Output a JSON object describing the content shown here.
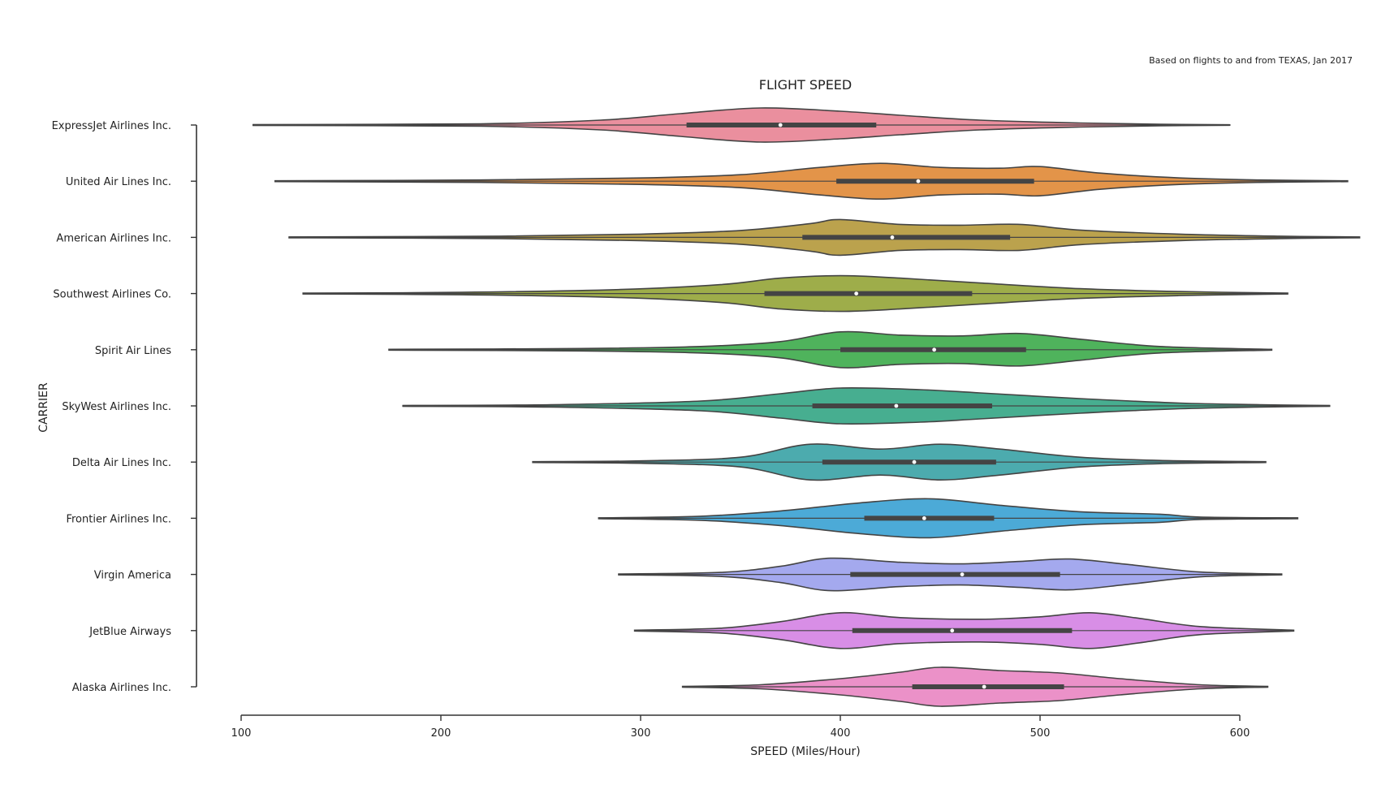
{
  "chart_data": {
    "type": "violin",
    "title": "FLIGHT SPEED",
    "annotation": "Based on flights to and from TEXAS, Jan 2017",
    "xlabel": "SPEED (Miles/Hour)",
    "ylabel": "CARRIER",
    "xlim": [
      100,
      600
    ],
    "x_ticks": [
      "100",
      "200",
      "300",
      "400",
      "500",
      "600"
    ],
    "grid": false,
    "categories": [
      "ExpressJet Airlines Inc.",
      "United Air Lines Inc.",
      "American Airlines Inc.",
      "Southwest Airlines Co.",
      "Spirit Air Lines",
      "SkyWest Airlines Inc.",
      "Delta Air Lines Inc.",
      "Frontier Airlines Inc.",
      "Virgin America",
      "JetBlue Airways",
      "Alaska Airlines Inc."
    ],
    "series": [
      {
        "min": 106,
        "q1": 323,
        "median": 370,
        "q3": 418,
        "max": 595,
        "color": "#ea8f9e",
        "density": [
          [
            106,
            0.01
          ],
          [
            220,
            0.03
          ],
          [
            280,
            0.12
          ],
          [
            320,
            0.28
          ],
          [
            360,
            0.42
          ],
          [
            400,
            0.34
          ],
          [
            430,
            0.24
          ],
          [
            470,
            0.12
          ],
          [
            520,
            0.05
          ],
          [
            560,
            0.02
          ],
          [
            595,
            0.005
          ]
        ]
      },
      {
        "min": 117,
        "q1": 398,
        "median": 439,
        "q3": 497,
        "max": 654,
        "color": "#e39449",
        "density": [
          [
            117,
            0.01
          ],
          [
            220,
            0.03
          ],
          [
            300,
            0.08
          ],
          [
            350,
            0.16
          ],
          [
            390,
            0.34
          ],
          [
            420,
            0.44
          ],
          [
            450,
            0.34
          ],
          [
            480,
            0.32
          ],
          [
            500,
            0.36
          ],
          [
            530,
            0.2
          ],
          [
            570,
            0.08
          ],
          [
            610,
            0.03
          ],
          [
            654,
            0.01
          ]
        ]
      },
      {
        "min": 124,
        "q1": 381,
        "median": 426,
        "q3": 485,
        "max": 660,
        "color": "#bba24d",
        "density": [
          [
            124,
            0.01
          ],
          [
            230,
            0.03
          ],
          [
            300,
            0.08
          ],
          [
            350,
            0.17
          ],
          [
            385,
            0.34
          ],
          [
            400,
            0.44
          ],
          [
            430,
            0.32
          ],
          [
            460,
            0.3
          ],
          [
            490,
            0.32
          ],
          [
            520,
            0.18
          ],
          [
            570,
            0.08
          ],
          [
            620,
            0.03
          ],
          [
            660,
            0.01
          ]
        ]
      },
      {
        "min": 131,
        "q1": 362,
        "median": 408,
        "q3": 466,
        "max": 624,
        "color": "#9ead4a",
        "density": [
          [
            131,
            0.01
          ],
          [
            210,
            0.03
          ],
          [
            290,
            0.1
          ],
          [
            340,
            0.22
          ],
          [
            370,
            0.38
          ],
          [
            400,
            0.44
          ],
          [
            430,
            0.38
          ],
          [
            470,
            0.26
          ],
          [
            520,
            0.12
          ],
          [
            570,
            0.05
          ],
          [
            624,
            0.01
          ]
        ]
      },
      {
        "min": 174,
        "q1": 400,
        "median": 447,
        "q3": 493,
        "max": 616,
        "color": "#4fb35c",
        "density": [
          [
            174,
            0.01
          ],
          [
            270,
            0.03
          ],
          [
            330,
            0.08
          ],
          [
            370,
            0.2
          ],
          [
            400,
            0.44
          ],
          [
            430,
            0.36
          ],
          [
            460,
            0.34
          ],
          [
            490,
            0.4
          ],
          [
            520,
            0.26
          ],
          [
            560,
            0.08
          ],
          [
            616,
            0.01
          ]
        ]
      },
      {
        "min": 181,
        "q1": 386,
        "median": 428,
        "q3": 476,
        "max": 645,
        "color": "#47ae90",
        "density": [
          [
            181,
            0.01
          ],
          [
            255,
            0.03
          ],
          [
            330,
            0.12
          ],
          [
            370,
            0.3
          ],
          [
            400,
            0.44
          ],
          [
            440,
            0.4
          ],
          [
            470,
            0.32
          ],
          [
            520,
            0.18
          ],
          [
            570,
            0.07
          ],
          [
            610,
            0.03
          ],
          [
            645,
            0.01
          ]
        ]
      },
      {
        "min": 246,
        "q1": 391,
        "median": 437,
        "q3": 478,
        "max": 613,
        "color": "#4cabae",
        "density": [
          [
            246,
            0.01
          ],
          [
            300,
            0.03
          ],
          [
            350,
            0.12
          ],
          [
            385,
            0.44
          ],
          [
            420,
            0.32
          ],
          [
            450,
            0.44
          ],
          [
            480,
            0.32
          ],
          [
            520,
            0.12
          ],
          [
            560,
            0.04
          ],
          [
            613,
            0.01
          ]
        ]
      },
      {
        "min": 279,
        "q1": 412,
        "median": 442,
        "q3": 477,
        "max": 629,
        "color": "#4caad7",
        "density": [
          [
            279,
            0.01
          ],
          [
            330,
            0.05
          ],
          [
            370,
            0.18
          ],
          [
            410,
            0.38
          ],
          [
            445,
            0.48
          ],
          [
            480,
            0.32
          ],
          [
            520,
            0.16
          ],
          [
            560,
            0.1
          ],
          [
            580,
            0.03
          ],
          [
            629,
            0.01
          ]
        ]
      },
      {
        "min": 289,
        "q1": 405,
        "median": 461,
        "q3": 510,
        "max": 621,
        "color": "#a4a9ee",
        "density": [
          [
            289,
            0.01
          ],
          [
            340,
            0.05
          ],
          [
            370,
            0.2
          ],
          [
            395,
            0.4
          ],
          [
            430,
            0.3
          ],
          [
            460,
            0.26
          ],
          [
            490,
            0.32
          ],
          [
            515,
            0.38
          ],
          [
            545,
            0.24
          ],
          [
            580,
            0.06
          ],
          [
            621,
            0.01
          ]
        ]
      },
      {
        "min": 297,
        "q1": 406,
        "median": 456,
        "q3": 516,
        "max": 627,
        "color": "#d88ee6",
        "density": [
          [
            297,
            0.01
          ],
          [
            340,
            0.06
          ],
          [
            370,
            0.22
          ],
          [
            400,
            0.44
          ],
          [
            430,
            0.32
          ],
          [
            470,
            0.28
          ],
          [
            500,
            0.34
          ],
          [
            525,
            0.44
          ],
          [
            550,
            0.3
          ],
          [
            580,
            0.1
          ],
          [
            627,
            0.01
          ]
        ]
      },
      {
        "min": 321,
        "q1": 436,
        "median": 472,
        "q3": 512,
        "max": 614,
        "color": "#eb91c8",
        "density": [
          [
            321,
            0.01
          ],
          [
            360,
            0.05
          ],
          [
            400,
            0.2
          ],
          [
            430,
            0.36
          ],
          [
            450,
            0.48
          ],
          [
            480,
            0.4
          ],
          [
            510,
            0.34
          ],
          [
            540,
            0.2
          ],
          [
            580,
            0.05
          ],
          [
            614,
            0.01
          ]
        ]
      }
    ]
  }
}
